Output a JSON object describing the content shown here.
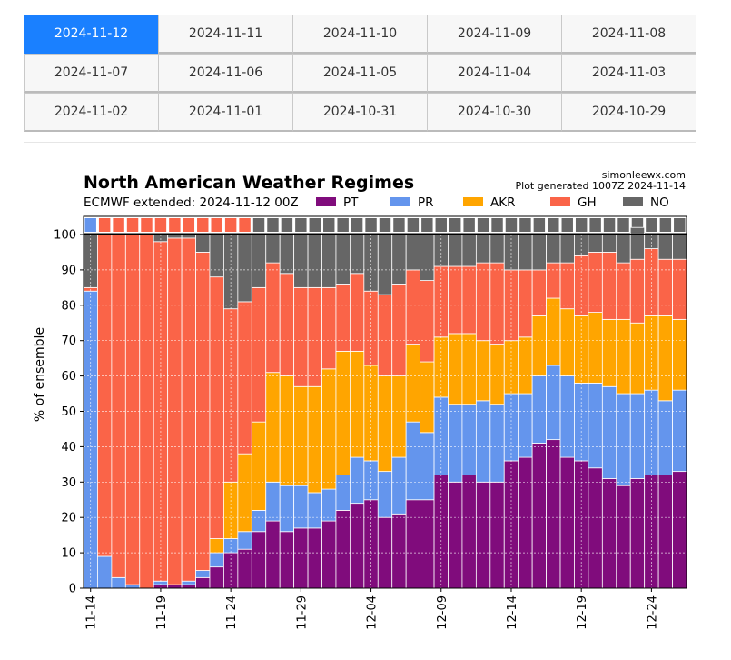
{
  "date_tabs": [
    [
      "2024-11-12",
      "2024-11-11",
      "2024-11-10",
      "2024-11-09",
      "2024-11-08"
    ],
    [
      "2024-11-07",
      "2024-11-06",
      "2024-11-05",
      "2024-11-04",
      "2024-11-03"
    ],
    [
      "2024-11-02",
      "2024-11-01",
      "2024-10-31",
      "2024-10-30",
      "2024-10-29"
    ]
  ],
  "active_tab": "2024-11-12",
  "chart_data": {
    "type": "bar",
    "stacked": true,
    "title": "North American Weather Regimes",
    "subtitle": "ECMWF extended: 2024-11-12 00Z",
    "source": "simonleewx.com",
    "generated": "Plot generated 1007Z 2024-11-14",
    "ylabel": "% of ensemble",
    "ylim": [
      0,
      100
    ],
    "yticks": [
      0,
      10,
      20,
      30,
      40,
      50,
      60,
      70,
      80,
      90,
      100
    ],
    "xtick_labels": [
      "11-14",
      "11-19",
      "11-24",
      "11-29",
      "12-04",
      "12-09",
      "12-14",
      "12-19",
      "12-24"
    ],
    "xtick_every": 5,
    "grid": true,
    "legend_position": "top",
    "series": [
      {
        "name": "PT",
        "color": "#800c7c",
        "values": [
          0,
          0,
          0,
          0,
          0,
          1,
          1,
          1,
          3,
          6,
          10,
          11,
          16,
          19,
          16,
          17,
          17,
          19,
          22,
          24,
          25,
          20,
          21,
          25,
          25,
          32,
          30,
          32,
          30,
          30,
          36,
          37,
          41,
          42,
          37,
          36,
          34,
          31,
          29,
          31,
          32,
          32,
          33
        ]
      },
      {
        "name": "PR",
        "color": "#6495ed",
        "values": [
          84,
          9,
          3,
          1,
          0,
          1,
          0,
          1,
          2,
          4,
          4,
          5,
          6,
          11,
          13,
          12,
          10,
          9,
          10,
          13,
          11,
          13,
          16,
          22,
          19,
          22,
          22,
          20,
          23,
          22,
          19,
          18,
          19,
          21,
          23,
          22,
          24,
          26,
          26,
          24,
          24,
          21,
          23
        ]
      },
      {
        "name": "AKR",
        "color": "#ffa500",
        "values": [
          0,
          0,
          0,
          0,
          0,
          0,
          0,
          0,
          0,
          4,
          16,
          22,
          25,
          31,
          31,
          28,
          30,
          34,
          35,
          30,
          27,
          27,
          23,
          22,
          20,
          17,
          20,
          20,
          17,
          17,
          15,
          16,
          17,
          19,
          19,
          19,
          20,
          19,
          21,
          20,
          21,
          24,
          20
        ]
      },
      {
        "name": "GH",
        "color": "#fa6448",
        "values": [
          1,
          91,
          97,
          99,
          100,
          96,
          98,
          97,
          90,
          74,
          49,
          43,
          38,
          31,
          29,
          28,
          28,
          23,
          19,
          22,
          21,
          23,
          26,
          21,
          23,
          20,
          19,
          19,
          22,
          23,
          20,
          19,
          13,
          10,
          13,
          17,
          17,
          19,
          16,
          18,
          19,
          16,
          17
        ]
      },
      {
        "name": "NO",
        "color": "#666666",
        "values": [
          15,
          0,
          0,
          0,
          0,
          2,
          1,
          1,
          5,
          12,
          21,
          19,
          15,
          8,
          11,
          15,
          15,
          15,
          14,
          11,
          16,
          17,
          14,
          10,
          13,
          9,
          9,
          9,
          8,
          8,
          10,
          10,
          10,
          8,
          8,
          6,
          5,
          5,
          8,
          9,
          4,
          7,
          7
        ]
      }
    ],
    "top_strip_colors": [
      "#6495ed",
      "#fa6448",
      "#fa6448",
      "#fa6448",
      "#fa6448",
      "#fa6448",
      "#fa6448",
      "#fa6448",
      "#fa6448",
      "#fa6448",
      "#fa6448",
      "#fa6448",
      "#666666",
      "#666666",
      "#666666",
      "#666666",
      "#666666",
      "#666666",
      "#666666",
      "#666666",
      "#666666",
      "#666666",
      "#666666",
      "#666666",
      "#666666",
      "#666666",
      "#666666",
      "#666666",
      "#666666",
      "#666666",
      "#666666",
      "#666666",
      "#666666",
      "#666666",
      "#666666",
      "#666666",
      "#666666",
      "#666666",
      "#666666",
      "#666666",
      "#666666",
      "#666666",
      "#666666"
    ]
  }
}
